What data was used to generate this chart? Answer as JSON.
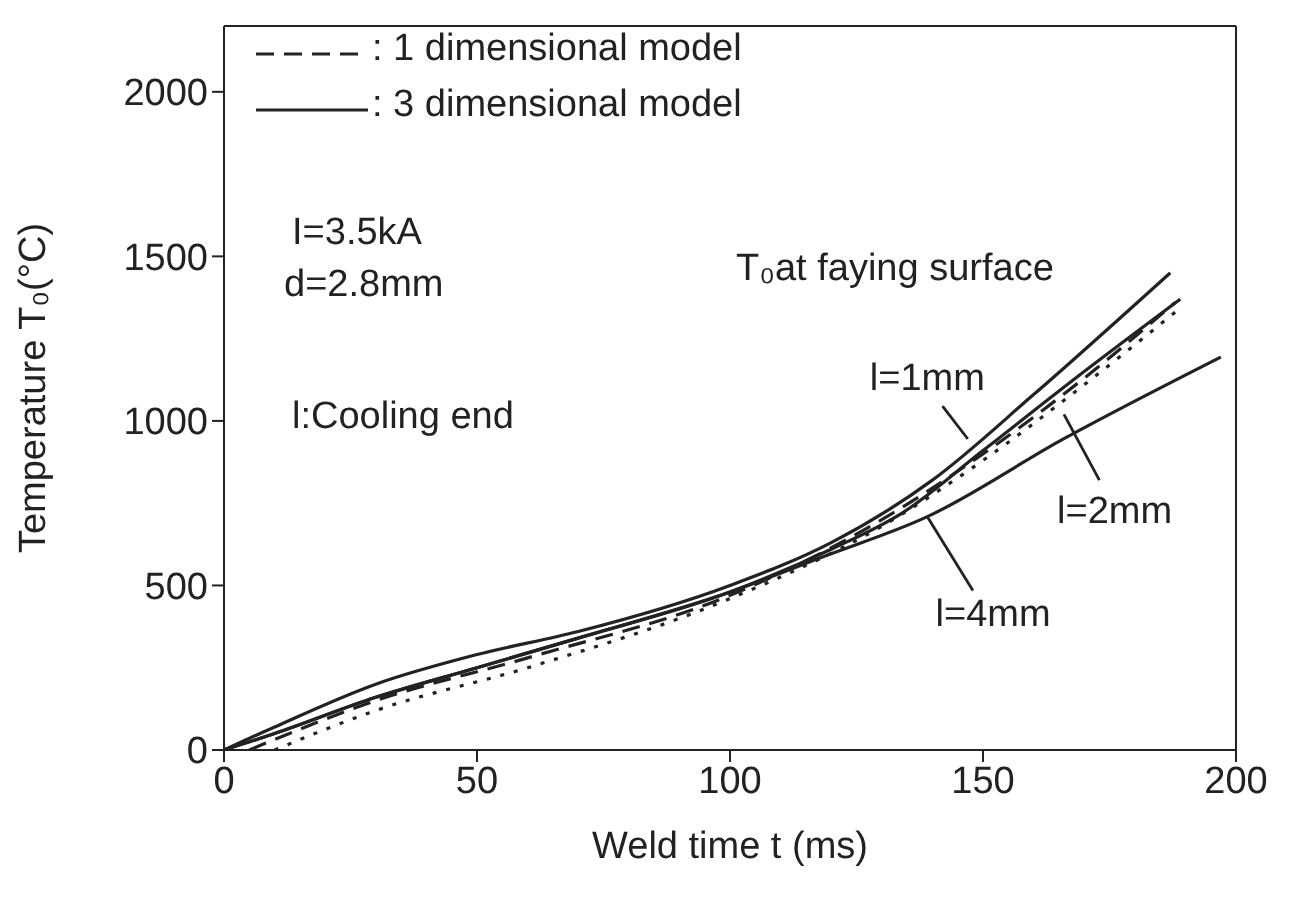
{
  "chart_data": {
    "type": "line",
    "xlabel": "Weld time t (ms)",
    "ylabel": "Temperature T₀(°C)",
    "xlim": [
      0,
      200
    ],
    "ylim": [
      0,
      2200
    ],
    "xticks": [
      0,
      50,
      100,
      150,
      200
    ],
    "yticks": [
      0,
      500,
      1000,
      1500,
      2000
    ],
    "grid": false,
    "marker": "none",
    "series": [
      {
        "color": "#222222",
        "line_style": "solid",
        "x": [
          0,
          10,
          30,
          50,
          70,
          100,
          120,
          140,
          160,
          187
        ],
        "values": [
          0,
          70,
          200,
          290,
          360,
          500,
          630,
          820,
          1080,
          1450
        ]
      },
      {
        "color": "#222222",
        "line_style": "solid",
        "x": [
          0,
          10,
          30,
          50,
          70,
          100,
          120,
          134,
          150,
          170,
          189
        ],
        "values": [
          0,
          50,
          160,
          250,
          340,
          480,
          610,
          720,
          910,
          1150,
          1370
        ]
      },
      {
        "color": "#222222",
        "line_style": "solid",
        "x": [
          0,
          10,
          30,
          50,
          70,
          100,
          118,
          139,
          166,
          197
        ],
        "values": [
          0,
          50,
          160,
          250,
          340,
          480,
          585,
          709,
          946,
          1194
        ]
      },
      {
        "color": "#222222",
        "line_style": "dashed",
        "x": [
          5,
          30,
          60,
          100,
          130,
          150,
          170,
          188
        ],
        "values": [
          0,
          150,
          280,
          470,
          700,
          900,
          1130,
          1360
        ]
      },
      {
        "color": "#222222",
        "line_style": "dotted",
        "x": [
          10,
          30,
          60,
          100,
          130,
          150,
          170,
          189
        ],
        "values": [
          0,
          120,
          250,
          460,
          680,
          880,
          1110,
          1343
        ]
      }
    ],
    "annotations": [
      ": 1 dimensional model",
      ": 3 dimensional model",
      "I=3.5kA",
      "d=2.8mm",
      "T₀at faying surface",
      "l:Cooling end",
      {
        "text": "l=1mm",
        "x": 147,
        "y": 945
      },
      {
        "text": "l=2mm",
        "x": 166,
        "y": 1020
      },
      {
        "text": "l=4mm",
        "x": 139,
        "y": 709
      }
    ]
  }
}
